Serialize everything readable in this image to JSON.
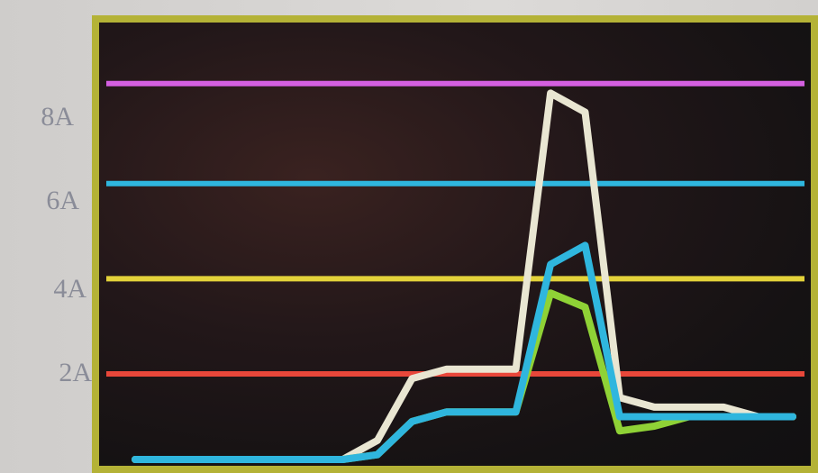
{
  "chart_data": {
    "type": "line",
    "title": "",
    "xlabel": "",
    "ylabel": "",
    "y_ticks": [
      "2A",
      "4A",
      "6A",
      "8A"
    ],
    "ylim": [
      0,
      8.9
    ],
    "x": [
      0,
      1,
      2,
      3,
      4,
      5,
      6,
      7,
      8,
      9,
      10,
      11,
      12,
      13,
      14,
      15,
      16,
      17,
      18,
      19
    ],
    "grid": false,
    "legend": "none",
    "threshold_lines": [
      {
        "value": 1.8,
        "color": "#e8473a"
      },
      {
        "value": 3.8,
        "color": "#e3d23a"
      },
      {
        "value": 5.8,
        "color": "#2fb6de"
      },
      {
        "value": 7.9,
        "color": "#d45fe0"
      }
    ],
    "series": [
      {
        "color": "#e9e6d2",
        "values": [
          0.0,
          0.0,
          0.0,
          0.0,
          0.0,
          0.0,
          0.0,
          0.4,
          1.7,
          1.9,
          1.9,
          1.9,
          7.7,
          7.3,
          1.3,
          1.1,
          1.1,
          1.1,
          0.9,
          0.9
        ]
      },
      {
        "color": "#8fd236",
        "values": [
          0.0,
          0.0,
          0.0,
          0.0,
          0.0,
          0.0,
          0.0,
          0.1,
          0.8,
          1.0,
          1.0,
          1.0,
          3.5,
          3.2,
          0.6,
          0.7,
          0.9,
          0.9,
          0.9,
          0.9
        ]
      },
      {
        "color": "#2fb6de",
        "values": [
          0.0,
          0.0,
          0.0,
          0.0,
          0.0,
          0.0,
          0.0,
          0.1,
          0.8,
          1.0,
          1.0,
          1.0,
          4.1,
          4.5,
          0.9,
          0.9,
          0.9,
          0.9,
          0.9,
          0.9
        ]
      }
    ]
  }
}
